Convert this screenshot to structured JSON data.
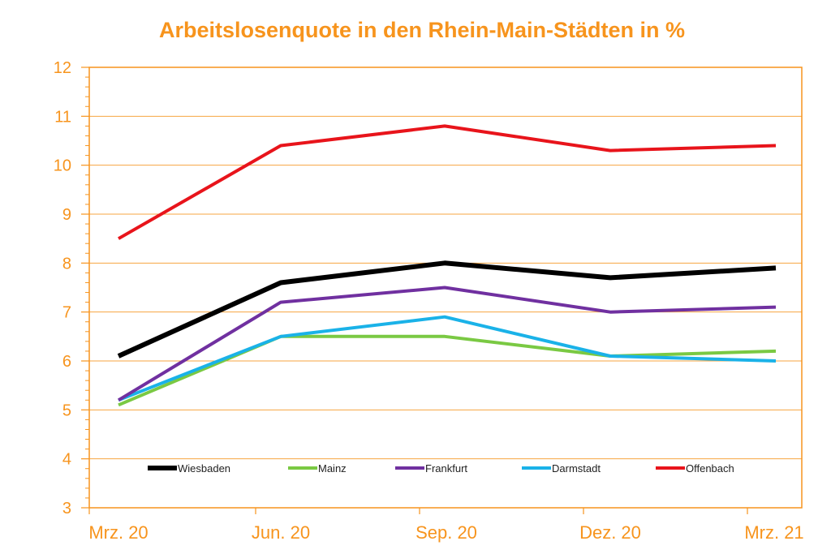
{
  "chart_data": {
    "type": "line",
    "title": "Arbeitslosenquote in den Rhein-Main-Städten in %",
    "xlabel": "",
    "ylabel": "",
    "categories": [
      "Mrz. 20",
      "Jun. 20",
      "Sep. 20",
      "Dez. 20",
      "Mrz. 21"
    ],
    "ylim": [
      3,
      12
    ],
    "yticks": [
      "3",
      "4",
      "5",
      "6",
      "7",
      "8",
      "9",
      "10",
      "11",
      "12"
    ],
    "grid": true,
    "legend_position": "bottom-inside",
    "series": [
      {
        "name": "Wiesbaden",
        "color": "#000000",
        "values": [
          6.1,
          7.6,
          8.0,
          7.7,
          7.9
        ]
      },
      {
        "name": "Mainz",
        "color": "#7AC943",
        "values": [
          5.1,
          6.5,
          6.5,
          6.1,
          6.2
        ]
      },
      {
        "name": "Frankfurt",
        "color": "#7030A0",
        "values": [
          5.2,
          7.2,
          7.5,
          7.0,
          7.1
        ]
      },
      {
        "name": "Darmstadt",
        "color": "#1AB2E8",
        "values": [
          5.2,
          6.5,
          6.9,
          6.1,
          6.0
        ]
      },
      {
        "name": "Offenbach",
        "color": "#E8141B",
        "values": [
          8.5,
          10.4,
          10.8,
          10.3,
          10.4
        ]
      }
    ],
    "colors": {
      "accent": "#F7941D",
      "grid": "#F7A540",
      "axis": "#F7941D"
    }
  }
}
